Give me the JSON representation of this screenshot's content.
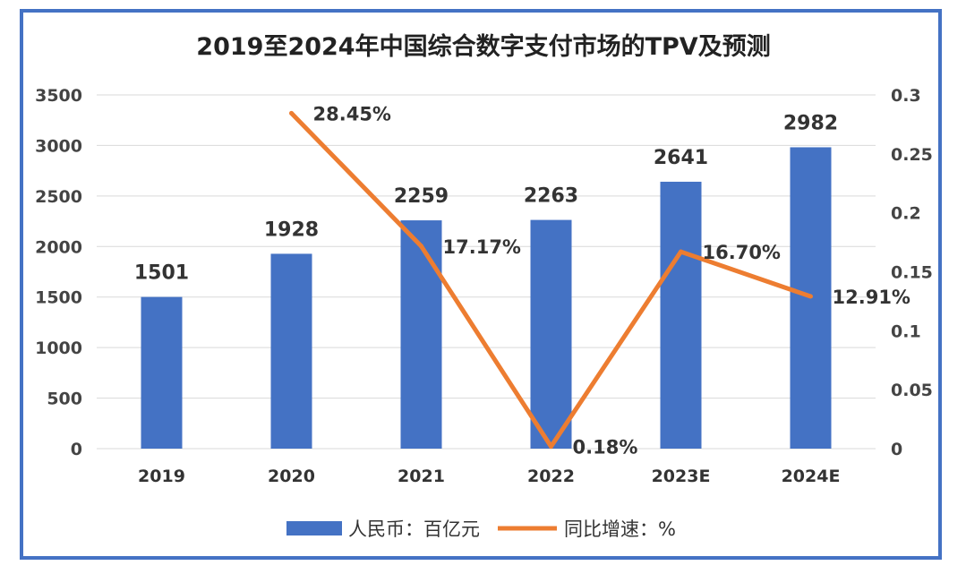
{
  "chart_data": {
    "type": "bar",
    "title": "2019至2024年中国综合数字支付市场的TPV及预测",
    "categories": [
      "2019",
      "2020",
      "2021",
      "2022",
      "2023E",
      "2024E"
    ],
    "series": [
      {
        "name": "人民币：百亿元",
        "type": "bar",
        "axis": "left",
        "values": [
          1501,
          1928,
          2259,
          2263,
          2641,
          2982
        ],
        "labels": [
          "1501",
          "1928",
          "2259",
          "2263",
          "2641",
          "2982"
        ],
        "color": "#4472c4"
      },
      {
        "name": "同比增速：%",
        "type": "line",
        "axis": "right",
        "values": [
          null,
          0.2845,
          0.1717,
          0.0018,
          0.167,
          0.1291
        ],
        "labels": [
          "",
          "28.45%",
          "17.17%",
          "0.18%",
          "16.70%",
          "12.91%"
        ],
        "color": "#ed7d31"
      }
    ],
    "left_axis": {
      "ylim": [
        0,
        3500
      ],
      "ticks": [
        "0",
        "500",
        "1000",
        "1500",
        "2000",
        "2500",
        "3000",
        "3500"
      ]
    },
    "right_axis": {
      "ylim": [
        0,
        0.3
      ],
      "ticks": [
        "0",
        "0.05",
        "0.1",
        "0.15",
        "0.2",
        "0.25",
        "0.3"
      ]
    },
    "grid": true,
    "legend_position": "bottom"
  }
}
